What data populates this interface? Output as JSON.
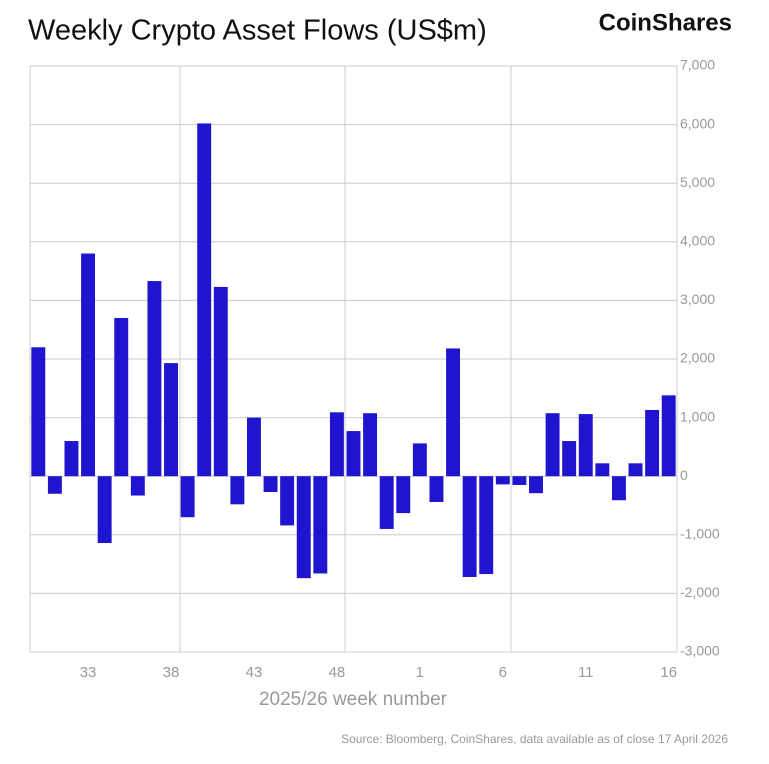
{
  "chart_data": {
    "type": "bar",
    "title": "Weekly Crypto Asset Flows (US$m)",
    "brand": "CoinShares",
    "x_label": "2025/26 week number",
    "source": "Source: Bloomberg, CoinShares, data available as of close 17 April 2026",
    "categories": [
      null,
      null,
      null,
      "33",
      null,
      null,
      null,
      null,
      "38",
      null,
      null,
      null,
      null,
      "43",
      null,
      null,
      null,
      null,
      "48",
      null,
      null,
      null,
      null,
      "1",
      null,
      null,
      null,
      null,
      "6",
      null,
      null,
      null,
      null,
      "11",
      null,
      null,
      null,
      null,
      "16"
    ],
    "values": [
      2200,
      -300,
      600,
      3800,
      -1140,
      2700,
      -330,
      3330,
      1930,
      -700,
      6020,
      3230,
      -480,
      1000,
      -270,
      -840,
      -1740,
      -1660,
      1090,
      770,
      1075,
      -900,
      -630,
      560,
      -440,
      2180,
      -1720,
      -1670,
      -140,
      -150,
      -290,
      1075,
      600,
      1060,
      220,
      -410,
      220,
      1130,
      1380
    ],
    "color": "#2015cf",
    "ylim": [
      -3000,
      7000
    ],
    "yticks": [
      {
        "value": -3000,
        "label": "-3,000"
      },
      {
        "value": -2000,
        "label": "-2,000"
      },
      {
        "value": -1000,
        "label": "-1,000"
      },
      0,
      {
        "value": 1000,
        "label": "1,000"
      },
      {
        "value": 2000,
        "label": "2,000"
      },
      {
        "value": 3000,
        "label": "3,000"
      },
      {
        "value": 4000,
        "label": "4,000"
      },
      {
        "value": 5000,
        "label": "5,000"
      },
      {
        "value": 6000,
        "label": "6,000"
      },
      {
        "value": 7000,
        "label": "7,000"
      }
    ],
    "grid": true
  }
}
